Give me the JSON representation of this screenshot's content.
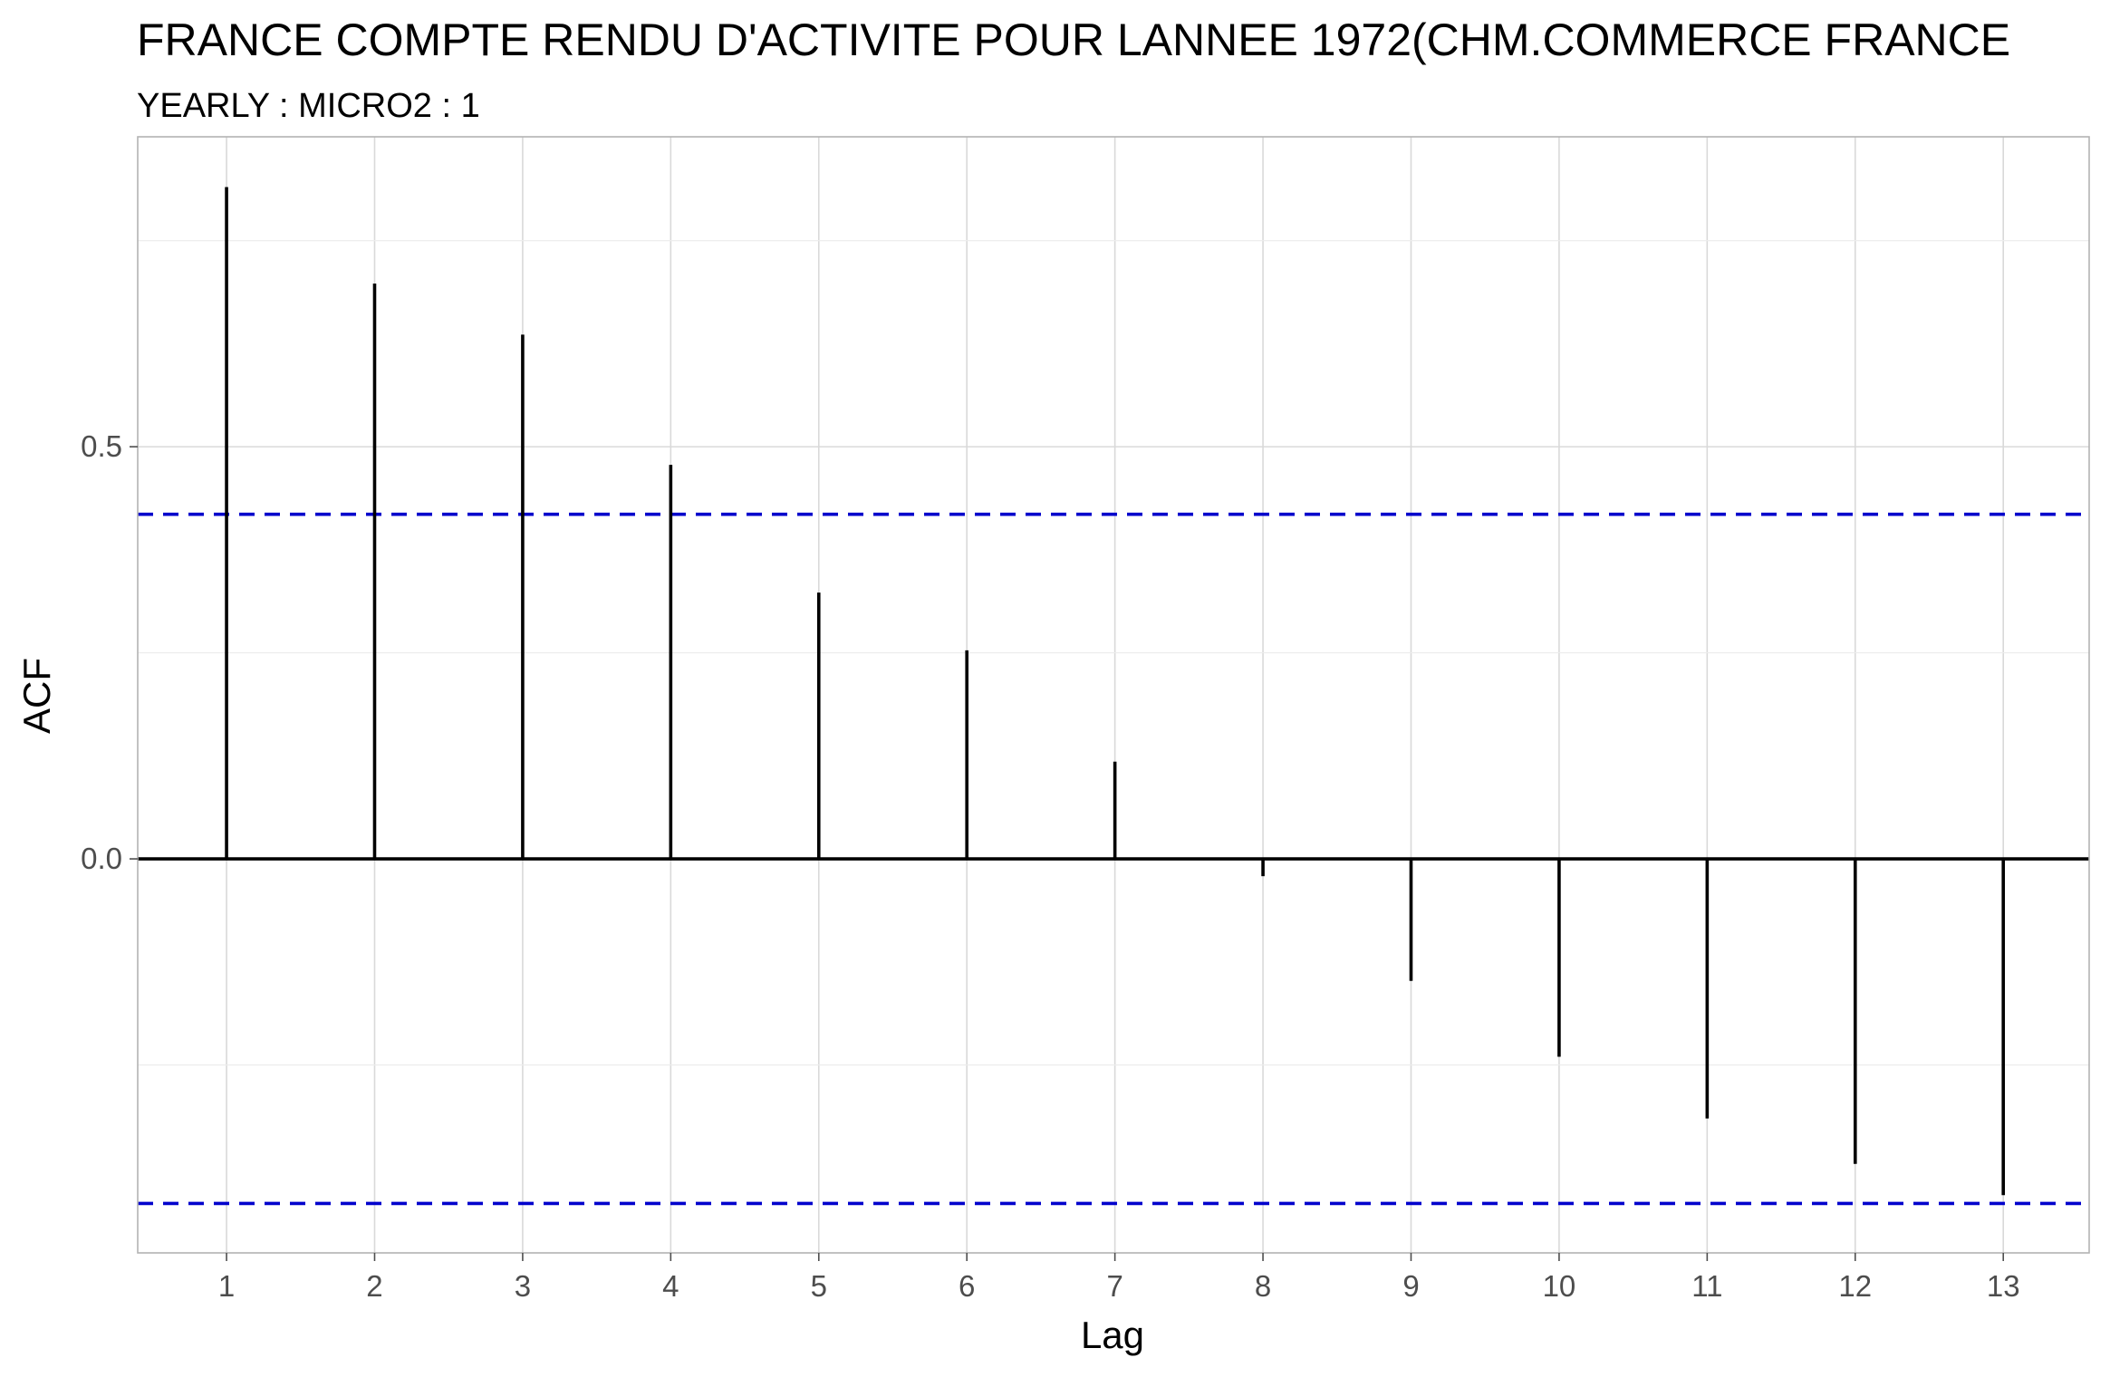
{
  "chart_data": {
    "type": "bar",
    "title": "FRANCE COMPTE RENDU D'ACTIVITE POUR LANNEE 1972(CHM.COMMERCE FRANCE",
    "subtitle": "YEARLY : MICRO2 : 1",
    "xlabel": "Lag",
    "ylabel": "ACF",
    "x": [
      1,
      2,
      3,
      4,
      5,
      6,
      7,
      8,
      9,
      10,
      11,
      12,
      13
    ],
    "x_tick_labels": [
      "1",
      "2",
      "3",
      "4",
      "5",
      "6",
      "7",
      "8",
      "9",
      "10",
      "11",
      "12",
      "13"
    ],
    "values": [
      0.815,
      0.698,
      0.636,
      0.478,
      0.323,
      0.253,
      0.118,
      -0.021,
      -0.148,
      -0.24,
      -0.315,
      -0.37,
      -0.408
    ],
    "y_ticks": [
      0.0,
      0.5
    ],
    "y_tick_labels": [
      "0.0",
      "0.5"
    ],
    "xlim": [
      0.4,
      13.58
    ],
    "ylim": [
      -0.478,
      0.876
    ],
    "confidence_bounds": [
      0.418,
      -0.418
    ],
    "grid": true,
    "colors": {
      "bars": "#000000",
      "confidence": "#0000cc"
    }
  }
}
